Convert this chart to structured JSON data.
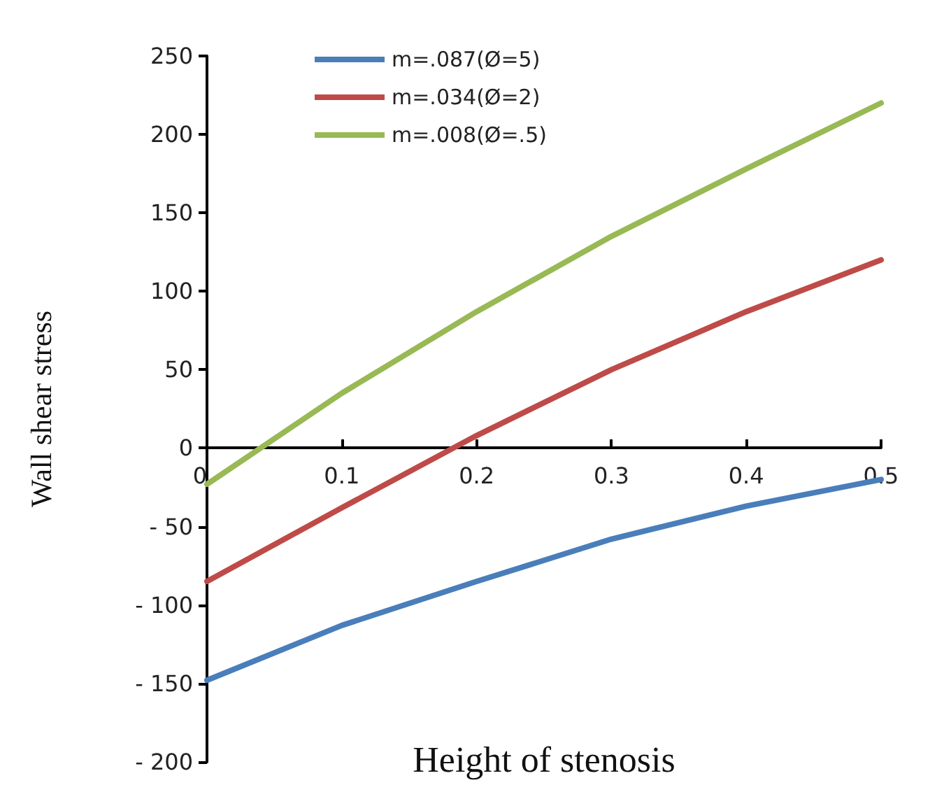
{
  "chart_data": {
    "type": "line",
    "xlabel": "Height of stenosis",
    "ylabel": "Wall shear stress",
    "x": [
      0,
      0.1,
      0.2,
      0.3,
      0.4,
      0.5
    ],
    "series": [
      {
        "name": "m=.087(Ø=5)",
        "color": "#4a7ebb",
        "values": [
          -148,
          -113,
          -85,
          -58,
          -37,
          -20
        ]
      },
      {
        "name": "m=.034(Ø=2)",
        "color": "#be4b48",
        "values": [
          -85,
          -38,
          8,
          50,
          87,
          120
        ]
      },
      {
        "name": "m=.008(Ø=.5)",
        "color": "#98b954",
        "values": [
          -23,
          35,
          87,
          135,
          178,
          220
        ]
      }
    ],
    "xlim": [
      0,
      0.5
    ],
    "xticks": [
      0,
      0.1,
      0.2,
      0.3,
      0.4,
      0.5
    ],
    "ylim": [
      -200,
      250
    ],
    "yticks": [
      {
        "value": -200,
        "label": "- 200"
      },
      {
        "value": -150,
        "label": "- 150"
      },
      {
        "value": -100,
        "label": "- 100"
      },
      {
        "value": -50,
        "label": "- 50"
      },
      0,
      50,
      100,
      150,
      200,
      250
    ],
    "grid": false,
    "legend": "top",
    "marker": "none",
    "line_style": "solid"
  }
}
